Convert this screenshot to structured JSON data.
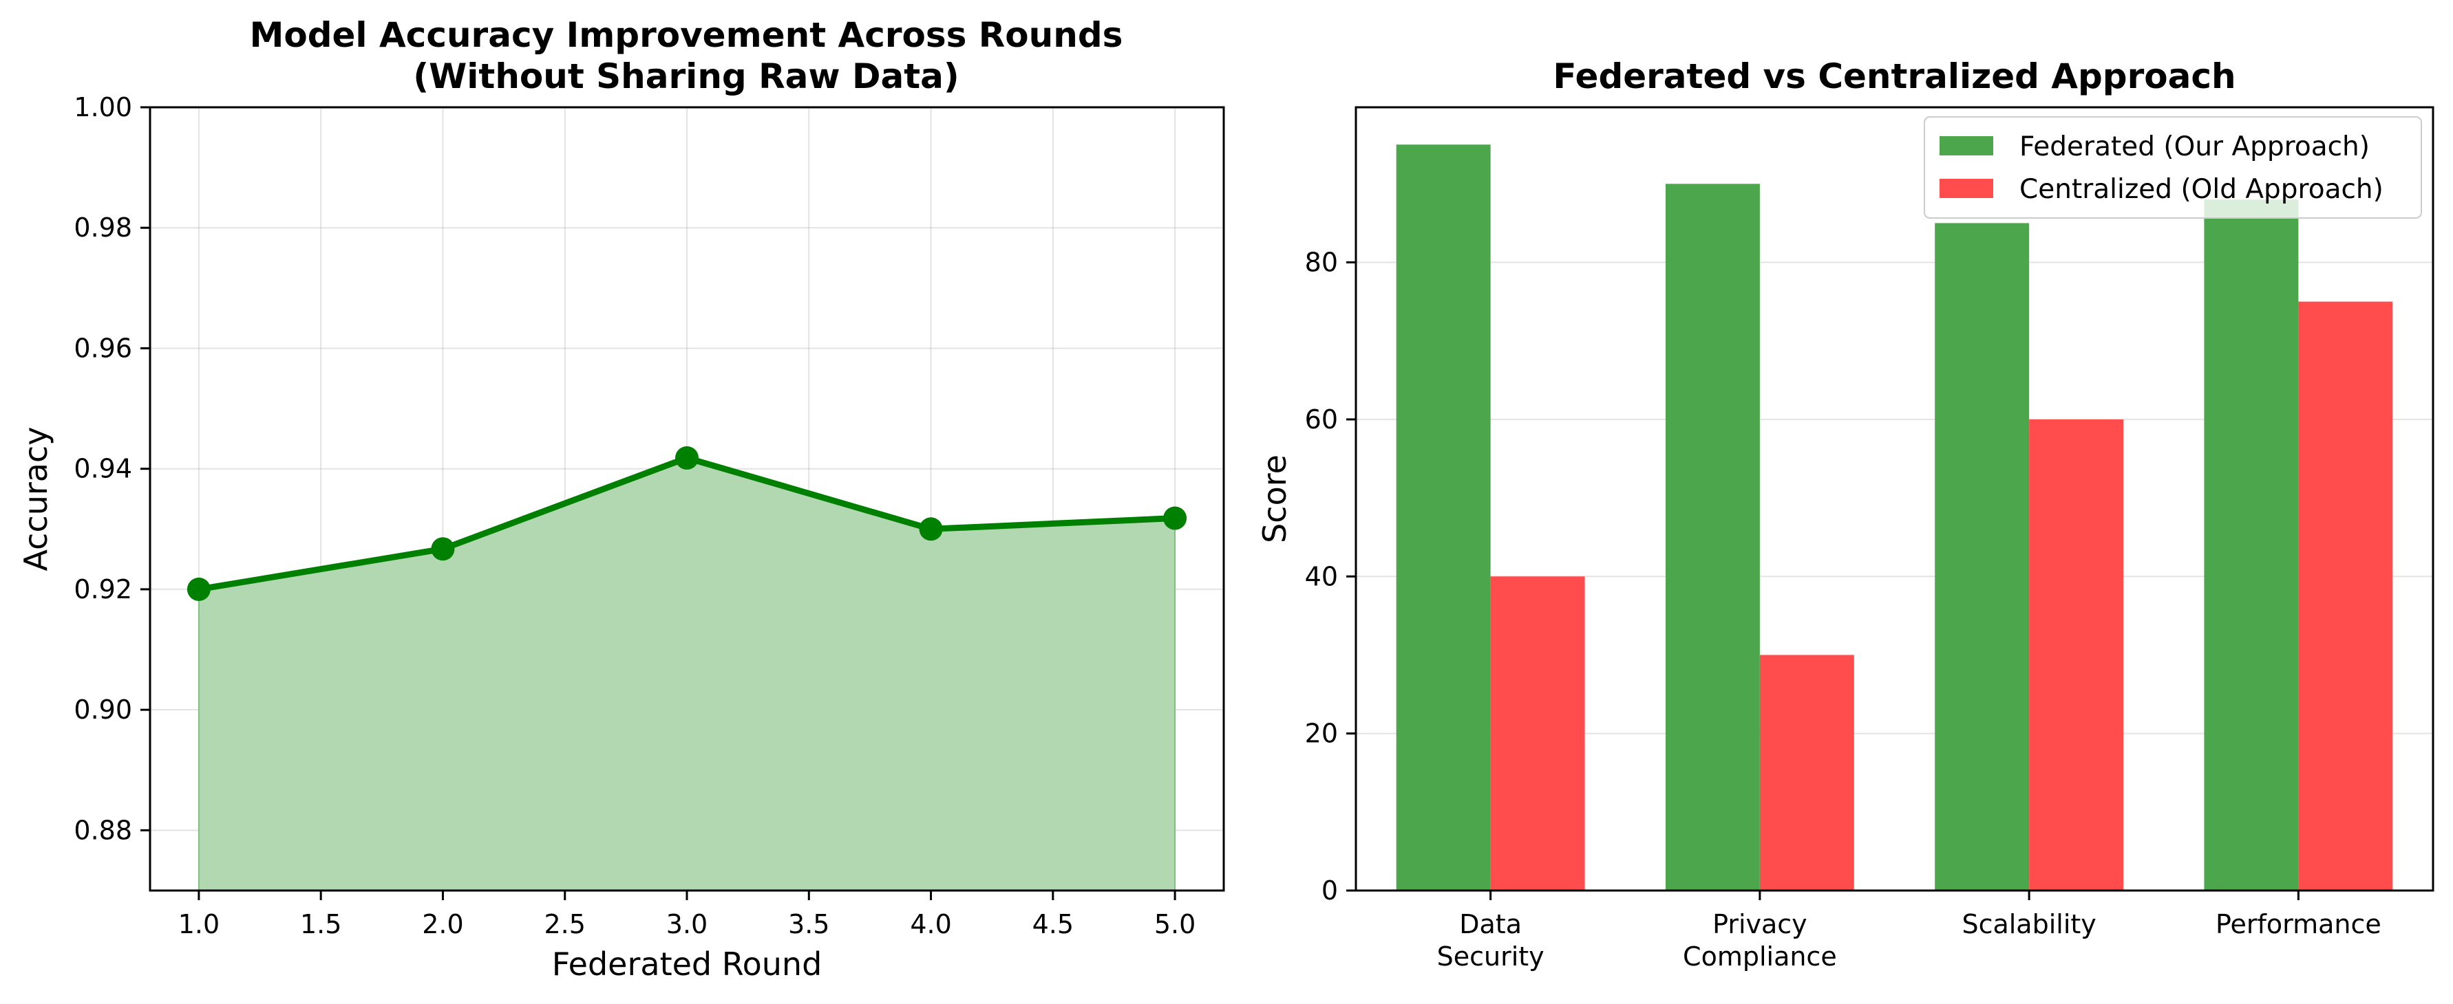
{
  "chart_data": [
    {
      "type": "area",
      "title_lines": [
        "Model Accuracy Improvement Across Rounds",
        "(Without Sharing Raw Data)"
      ],
      "xlabel": "Federated Round",
      "ylabel": "Accuracy",
      "x": [
        1,
        2,
        3,
        4,
        5
      ],
      "y": [
        0.92,
        0.9267,
        0.9418,
        0.93,
        0.9318
      ],
      "xlim": [
        0.8,
        5.2
      ],
      "ylim": [
        0.87,
        1.0
      ],
      "x_ticks": [
        "1.0",
        "1.5",
        "2.0",
        "2.5",
        "3.0",
        "3.5",
        "4.0",
        "4.5",
        "5.0"
      ],
      "y_ticks": [
        "0.88",
        "0.90",
        "0.92",
        "0.94",
        "0.96",
        "0.98",
        "1.00"
      ],
      "grid": true,
      "line_color": "#008000",
      "fill_color": "#b2d8b2"
    },
    {
      "type": "bar",
      "title": "Federated vs Centralized Approach",
      "ylabel": "Score",
      "categories": [
        "Data\nSecurity",
        "Privacy\nCompliance",
        "Scalability",
        "Performance"
      ],
      "series": [
        {
          "name": "Federated (Our Approach)",
          "values": [
            95,
            90,
            85,
            88
          ],
          "color": "#4ca64c"
        },
        {
          "name": "Centralized (Old Approach)",
          "values": [
            40,
            30,
            60,
            75
          ],
          "color": "#ff4c4c"
        }
      ],
      "ylim": [
        0,
        100
      ],
      "y_ticks": [
        "0",
        "20",
        "40",
        "60",
        "80"
      ],
      "grid": true,
      "legend_position": "top-right"
    }
  ]
}
